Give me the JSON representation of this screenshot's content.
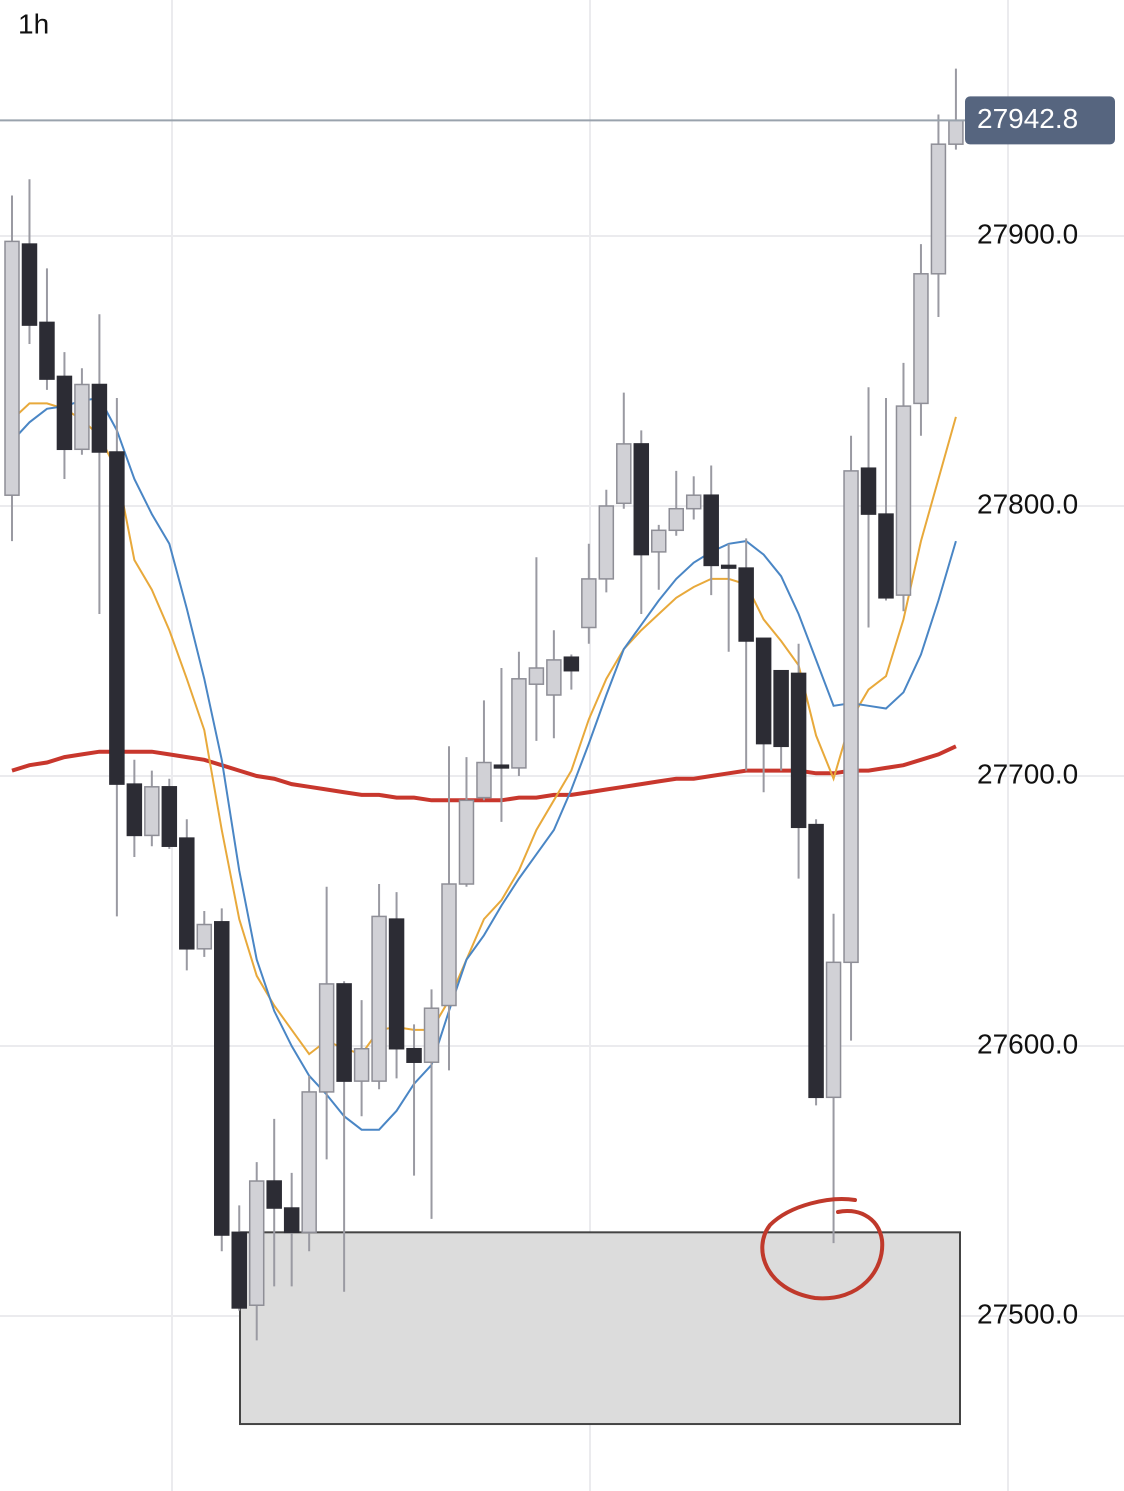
{
  "chart_data": {
    "type": "candlestick",
    "title": "1h",
    "open": [
      27804,
      27897,
      27868,
      27848,
      27821,
      27845,
      27820,
      27697,
      27678,
      27696,
      27677,
      27636,
      27646,
      27531,
      27504,
      27550,
      27540,
      27531,
      27583,
      27623,
      27587,
      27587,
      27647,
      27599,
      27594,
      27615,
      27660,
      27692,
      27704,
      27703,
      27734,
      27730,
      27744,
      27755,
      27773,
      27801,
      27823,
      27783,
      27791,
      27799,
      27804,
      27778,
      27777,
      27751,
      27739,
      27738,
      27682,
      27581,
      27631,
      27814,
      27797,
      27767,
      27838,
      27886,
      27934
    ],
    "high": [
      27915,
      27921,
      27888,
      27857,
      27851,
      27871,
      27840,
      27706,
      27702,
      27699,
      27684,
      27650,
      27651,
      27541,
      27557,
      27573,
      27553,
      27589,
      27659,
      27624,
      27617,
      27660,
      27657,
      27608,
      27621,
      27711,
      27707,
      27728,
      27740,
      27746,
      27781,
      27754,
      27745,
      27786,
      27806,
      27842,
      27828,
      27793,
      27813,
      27811,
      27815,
      27786,
      27788,
      27751,
      27739,
      27749,
      27684,
      27649,
      27826,
      27844,
      27840,
      27853,
      27897,
      27945,
      27962
    ],
    "low": [
      27787,
      27860,
      27843,
      27810,
      27819,
      27760,
      27648,
      27670,
      27674,
      27673,
      27628,
      27633,
      27524,
      27502,
      27491,
      27511,
      27511,
      27524,
      27558,
      27509,
      27574,
      27584,
      27588,
      27552,
      27536,
      27591,
      27659,
      27691,
      27683,
      27700,
      27713,
      27714,
      27732,
      27749,
      27768,
      27799,
      27760,
      27769,
      27789,
      27795,
      27767,
      27746,
      27702,
      27694,
      27702,
      27662,
      27578,
      27527,
      27602,
      27755,
      27765,
      27761,
      27826,
      27870,
      27932
    ],
    "close": [
      27898,
      27867,
      27847,
      27821,
      27845,
      27820,
      27697,
      27678,
      27696,
      27674,
      27636,
      27645,
      27530,
      27503,
      27550,
      27540,
      27531,
      27583,
      27623,
      27587,
      27599,
      27648,
      27599,
      27594,
      27614,
      27660,
      27691,
      27705,
      27703,
      27736,
      27740,
      27743,
      27739,
      27773,
      27800,
      27823,
      27782,
      27791,
      27799,
      27804,
      27778,
      27777,
      27750,
      27712,
      27711,
      27681,
      27581,
      27631,
      27813,
      27797,
      27766,
      27837,
      27886,
      27934,
      27942.8
    ],
    "up_color": "#d1d1d6",
    "down_color": "#2c2c34",
    "overlays": [
      {
        "color": "#c8372d",
        "values": [
          27702,
          27704,
          27705,
          27707,
          27708,
          27709,
          27709,
          27709,
          27709,
          27708,
          27707,
          27706,
          27704,
          27702,
          27700,
          27699,
          27697,
          27696,
          27695,
          27694,
          27693,
          27693,
          27692,
          27692,
          27691,
          27691,
          27691,
          27691,
          27691,
          27692,
          27692,
          27693,
          27693,
          27694,
          27695,
          27696,
          27697,
          27698,
          27699,
          27699,
          27700,
          27701,
          27702,
          27702,
          27702,
          27702,
          27701,
          27701,
          27702,
          27702,
          27703,
          27704,
          27706,
          27708,
          27711
        ]
      },
      {
        "color": "#e8a93b",
        "values": [
          27832,
          27838,
          27838,
          27836,
          27832,
          27826,
          27813,
          27780,
          27769,
          27754,
          27736,
          27717,
          27680,
          27647,
          27626,
          27615,
          27606,
          27597,
          27602,
          27599,
          27597,
          27606,
          27607,
          27606,
          27606,
          27617,
          27632,
          27647,
          27654,
          27665,
          27680,
          27691,
          27702,
          27721,
          27736,
          27747,
          27754,
          27760,
          27766,
          27770,
          27773,
          27773,
          27771,
          27758,
          27750,
          27741,
          27715,
          27699,
          27721,
          27732,
          27737,
          27758,
          27787,
          27810,
          27833
        ]
      },
      {
        "color": "#4a86c5",
        "values": [
          27824,
          27831,
          27836,
          27837,
          27839,
          27840,
          27828,
          27810,
          27797,
          27786,
          27762,
          27736,
          27706,
          27665,
          27632,
          27613,
          27600,
          27589,
          27582,
          27574,
          27569,
          27569,
          27576,
          27586,
          27593,
          27613,
          27632,
          27641,
          27652,
          27662,
          27671,
          27680,
          27695,
          27712,
          27730,
          27747,
          27756,
          27765,
          27773,
          27779,
          27783,
          27786,
          27787,
          27782,
          27774,
          27760,
          27743,
          27726,
          27727,
          27726,
          27725,
          27731,
          27745,
          27765,
          27787
        ]
      }
    ],
    "zone": {
      "low": 27460,
      "high": 27531
    },
    "last_price": 27942.8,
    "ylim": [
      27435.2,
      27987.4
    ],
    "yticks": [
      {
        "value": 27500,
        "label": "27500.0"
      },
      {
        "value": 27600,
        "label": "27600.0"
      },
      {
        "value": 27700,
        "label": "27700.0"
      },
      {
        "value": 27800,
        "label": "27800.0"
      },
      {
        "value": 27900,
        "label": "27900.0"
      }
    ],
    "grid": true
  }
}
